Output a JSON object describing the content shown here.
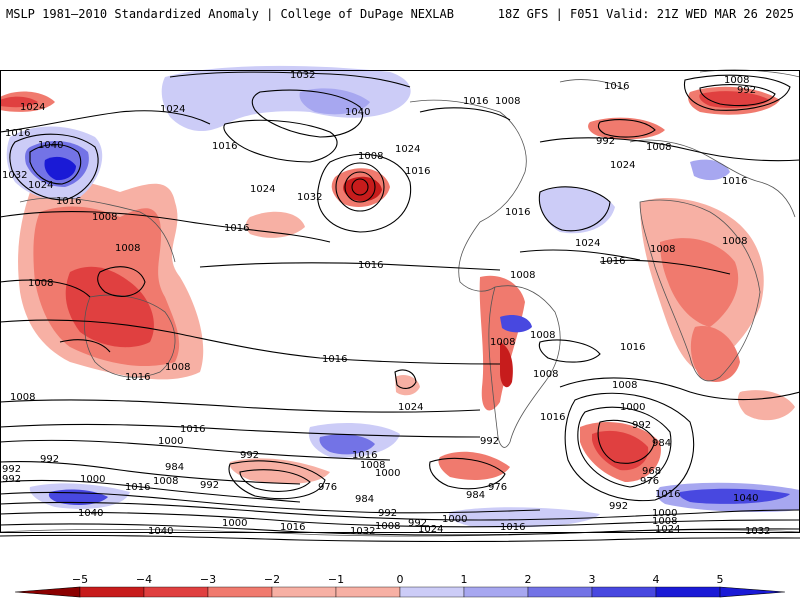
{
  "header": {
    "left": "MSLP 1981–2010 Standardized Anomaly | College of DuPage NEXLAB",
    "right": "18Z GFS | F051 Valid: 21Z WED MAR 26 2025"
  },
  "legend": {
    "ticks": [
      "−5",
      "−4",
      "−3",
      "−2",
      "−1",
      "0",
      "1",
      "2",
      "3",
      "4",
      "5"
    ],
    "colors": [
      "#8b0000",
      "#c71c1c",
      "#e04040",
      "#f07a6e",
      "#f7b0a4",
      "#ffffff",
      "#ccccf7",
      "#a7a7f0",
      "#7373e6",
      "#4848e0",
      "#1a1ad6"
    ]
  },
  "isobars": {
    "labels": [
      {
        "text": "1032",
        "color_class": "black"
      },
      {
        "text": "1024",
        "color_class": "black"
      },
      {
        "text": "1016",
        "color_class": "black"
      },
      {
        "text": "1008",
        "color_class": "black"
      },
      {
        "text": "1000",
        "color_class": "black"
      },
      {
        "text": "992",
        "color_class": "black"
      },
      {
        "text": "984",
        "color_class": "black"
      },
      {
        "text": "976",
        "color_class": "black"
      },
      {
        "text": "968",
        "color_class": "black"
      },
      {
        "text": "1040",
        "color_class": "black"
      }
    ]
  }
}
